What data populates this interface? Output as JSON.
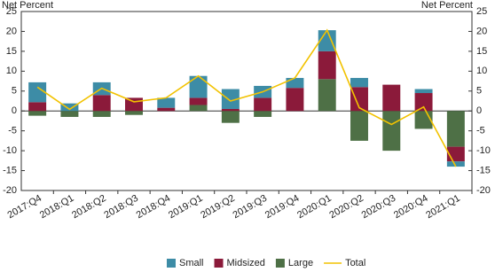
{
  "chart_data": {
    "type": "bar",
    "stacked": true,
    "y_label": "Net Percent",
    "y2_label": "Net Percent",
    "categories": [
      "2017:Q4",
      "2018:Q1",
      "2018:Q2",
      "2018:Q3",
      "2018:Q4",
      "2019:Q1",
      "2019:Q2",
      "2019:Q3",
      "2019:Q4",
      "2020:Q1",
      "2020:Q2",
      "2020:Q3",
      "2020:Q4",
      "2021:Q1"
    ],
    "series": [
      {
        "name": "Small",
        "color": "#3d8ca6",
        "values": [
          5.0,
          1.9,
          3.2,
          0,
          2.5,
          5.5,
          5.0,
          3.0,
          2.5,
          5.3,
          2.3,
          0,
          1.0,
          -1.3
        ]
      },
      {
        "name": "Midsized",
        "color": "#8b1a3a",
        "values": [
          2.2,
          0,
          4.0,
          3.3,
          0.8,
          1.8,
          0.5,
          3.3,
          5.8,
          7.0,
          6.0,
          6.6,
          4.5,
          -3.7
        ]
      },
      {
        "name": "Large",
        "color": "#4e7046",
        "values": [
          -1.2,
          -1.5,
          -1.5,
          -1.0,
          0,
          1.5,
          -3.0,
          -1.5,
          0,
          8.0,
          -7.5,
          -10.0,
          -4.5,
          -9.0
        ]
      },
      {
        "name": "Total",
        "type": "line",
        "color": "#f2c200",
        "values": [
          6.0,
          0.4,
          5.7,
          2.3,
          3.3,
          8.8,
          2.5,
          4.8,
          8.3,
          20.3,
          0.8,
          -3.4,
          1.0,
          -14.0
        ]
      }
    ],
    "ylim": [
      -20,
      25
    ],
    "yticks": [
      -20,
      -15,
      -10,
      -5,
      0,
      5,
      10,
      15,
      20,
      25
    ],
    "y2lim": [
      -20,
      25
    ],
    "y2ticks": [
      -20,
      -15,
      -10,
      -5,
      0,
      5,
      10,
      15,
      20,
      25
    ],
    "grid": false
  }
}
